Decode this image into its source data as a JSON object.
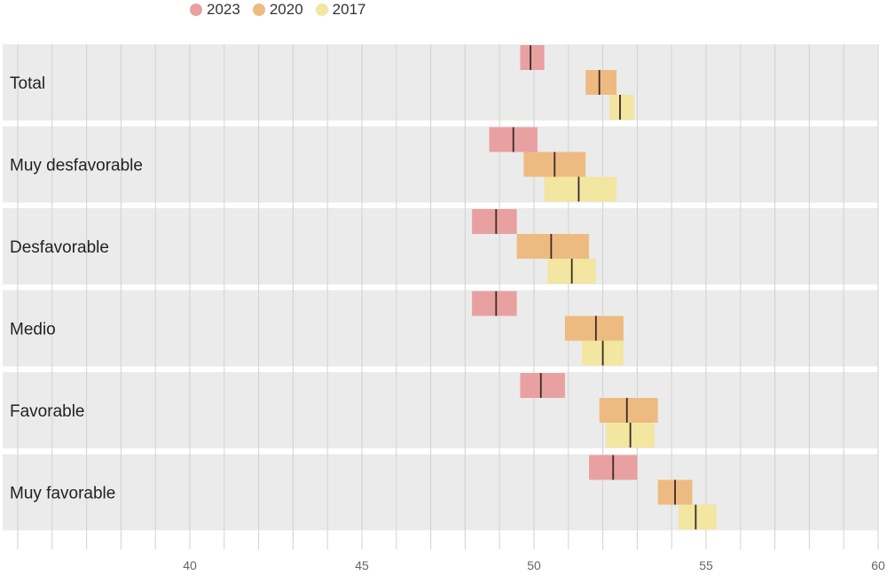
{
  "chart_data": {
    "type": "interval",
    "title": "",
    "xlabel": "",
    "ylabel": "",
    "xlim": [
      35,
      60
    ],
    "x_ticks": [
      40,
      45,
      50,
      55,
      60
    ],
    "grid": true,
    "legend_position": "top",
    "categories": [
      "Total",
      "Muy desfavorable",
      "Desfavorable",
      "Medio",
      "Favorable",
      "Muy favorable"
    ],
    "series": [
      {
        "name": "2023",
        "color": "#e8a0a0",
        "mean": [
          49.9,
          49.4,
          48.9,
          48.9,
          50.2,
          52.3
        ],
        "low": [
          49.6,
          48.7,
          48.2,
          48.2,
          49.6,
          51.6
        ],
        "high": [
          50.3,
          50.1,
          49.5,
          49.5,
          50.9,
          53.0
        ]
      },
      {
        "name": "2020",
        "color": "#edbb82",
        "mean": [
          51.9,
          50.6,
          50.5,
          51.8,
          52.7,
          54.1
        ],
        "low": [
          51.5,
          49.7,
          49.5,
          50.9,
          51.9,
          53.6
        ],
        "high": [
          52.4,
          51.5,
          51.6,
          52.6,
          53.6,
          54.6
        ]
      },
      {
        "name": "2017",
        "color": "#f2e6a0",
        "mean": [
          52.5,
          51.3,
          51.1,
          52.0,
          52.8,
          54.7
        ],
        "low": [
          52.2,
          50.3,
          50.4,
          51.4,
          52.1,
          54.2
        ],
        "high": [
          52.9,
          52.4,
          51.8,
          52.6,
          53.5,
          55.3
        ]
      }
    ]
  }
}
